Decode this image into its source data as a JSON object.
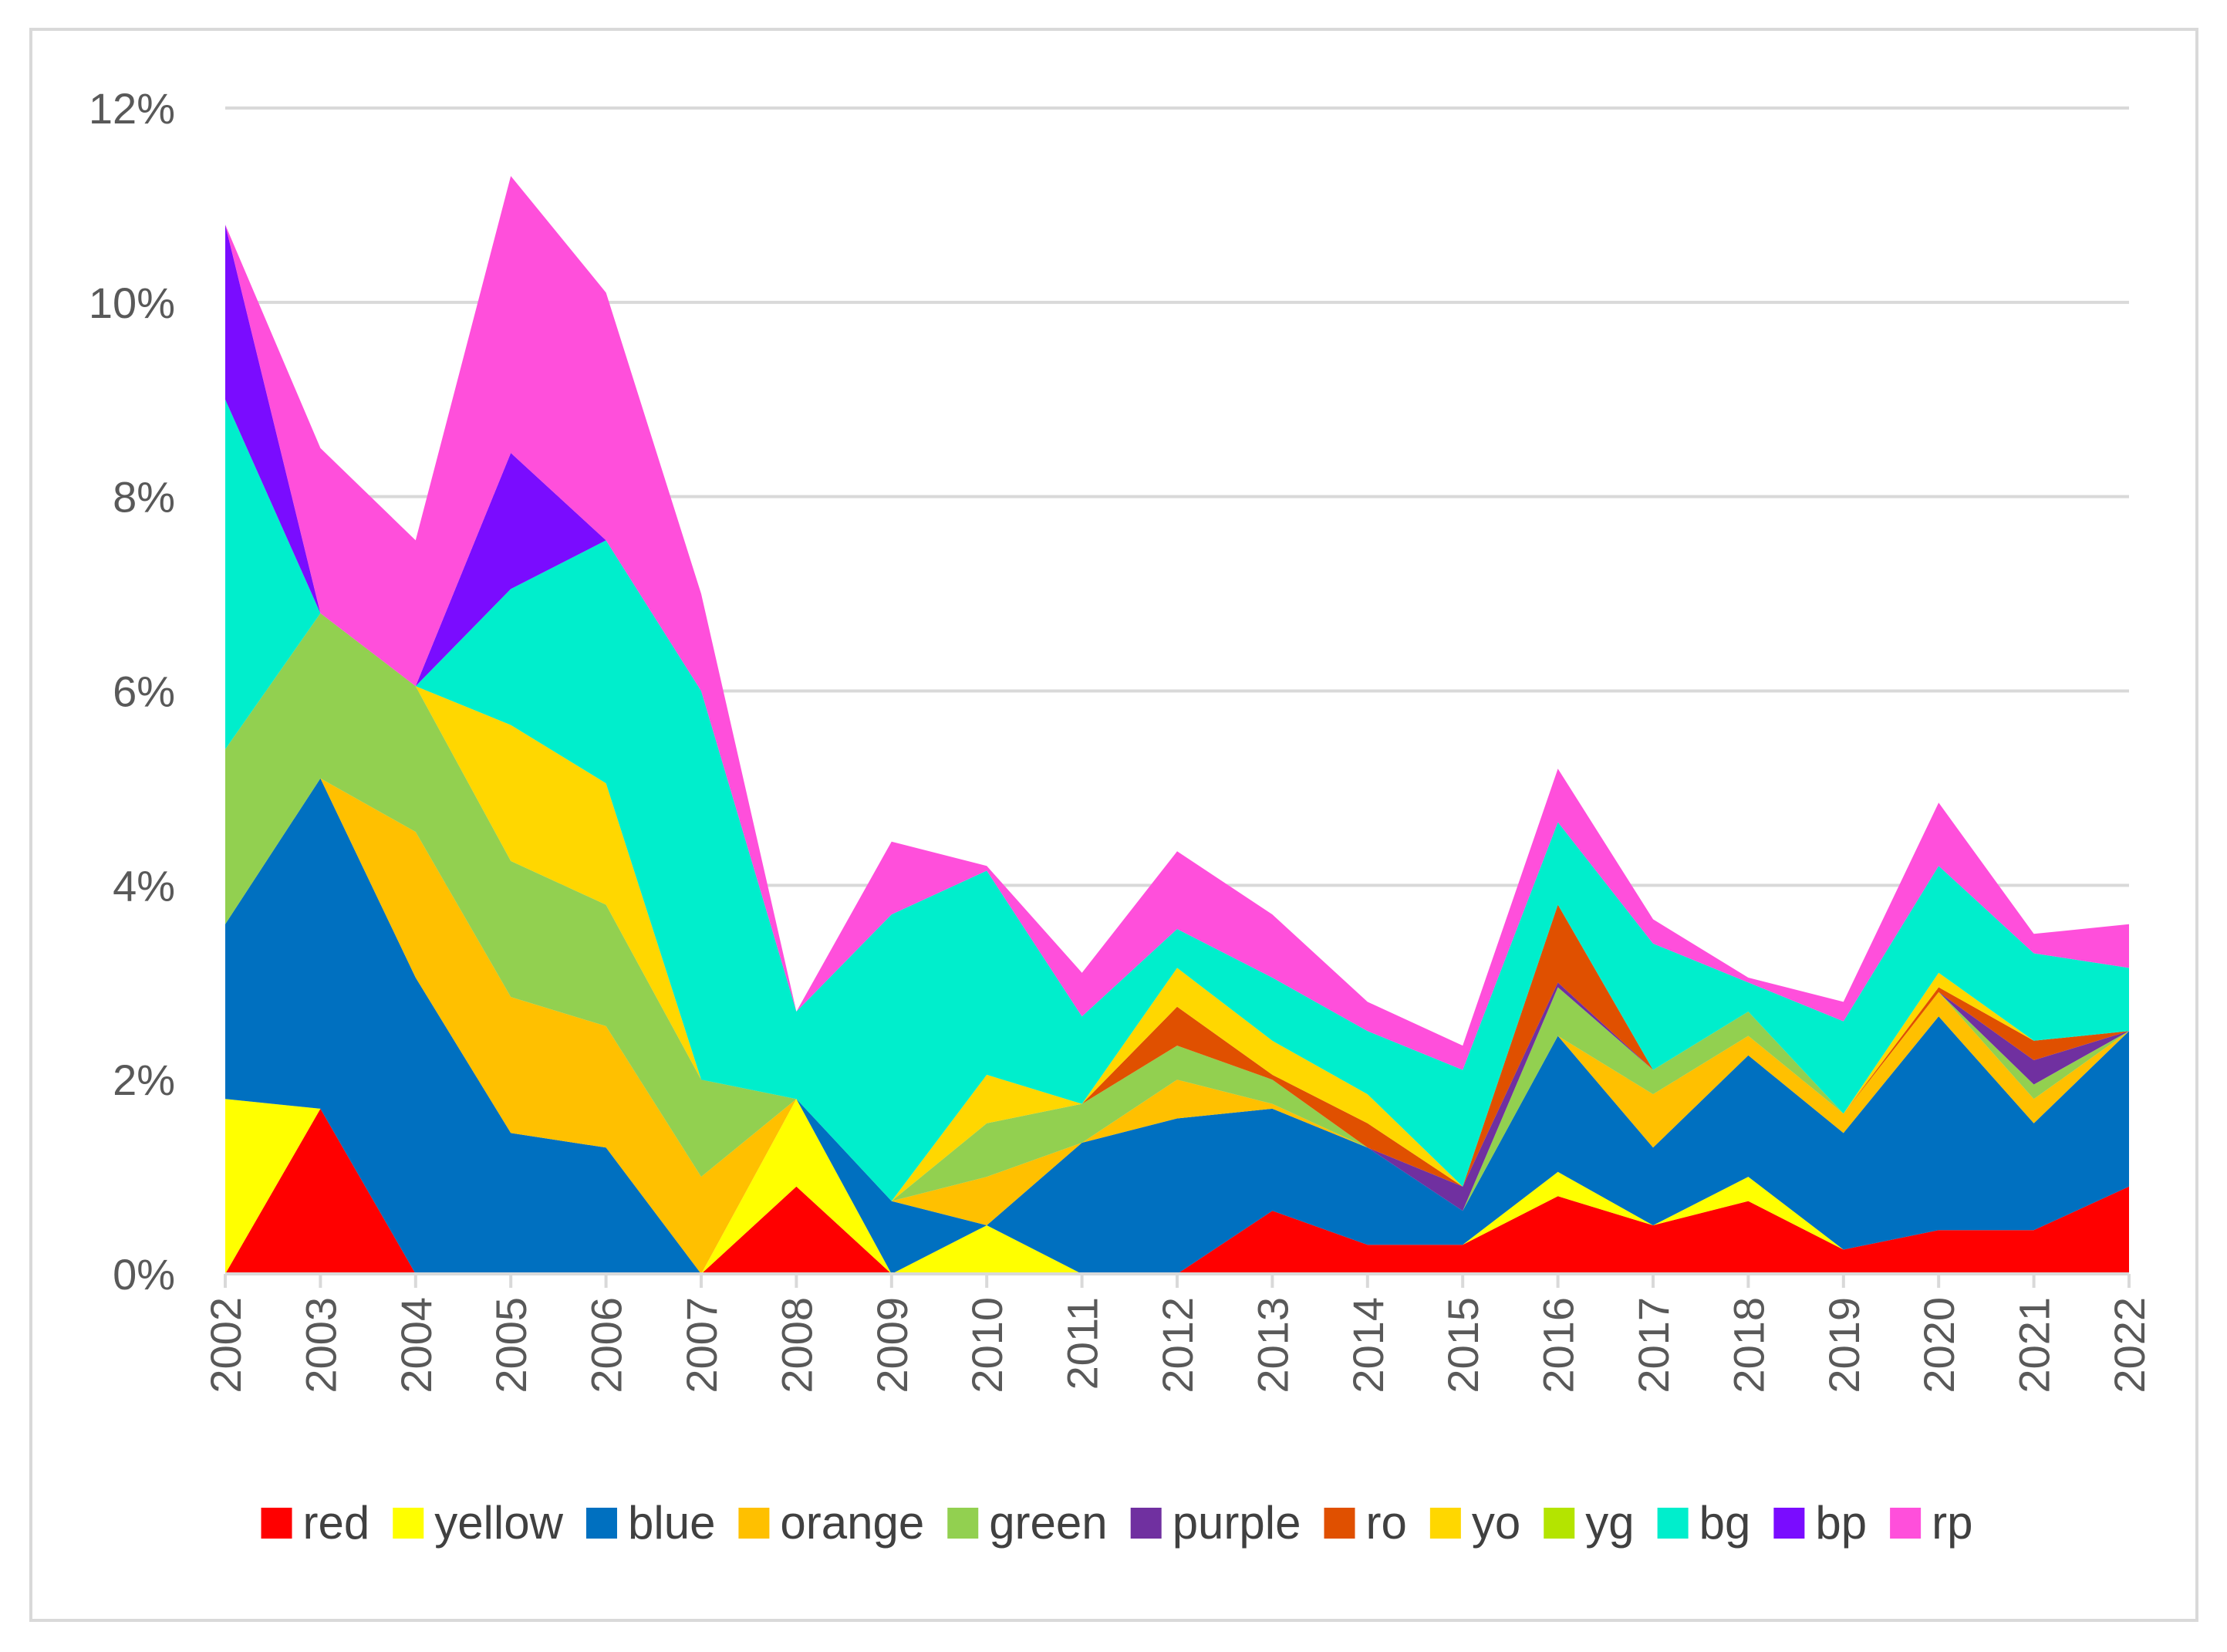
{
  "chart_data": {
    "type": "area",
    "stacked": true,
    "title": "",
    "xlabel": "",
    "ylabel": "",
    "ylim": [
      0,
      12
    ],
    "y_ticks": [
      0,
      2,
      4,
      6,
      8,
      10,
      12
    ],
    "y_tick_labels": [
      "0%",
      "2%",
      "4%",
      "6%",
      "8%",
      "10%",
      "12%"
    ],
    "grid": true,
    "legend_position": "bottom",
    "categories": [
      "2002",
      "2003",
      "2004",
      "2005",
      "2006",
      "2007",
      "2008",
      "2009",
      "2010",
      "2011",
      "2012",
      "2013",
      "2014",
      "2015",
      "2016",
      "2017",
      "2018",
      "2019",
      "2020",
      "2021",
      "2022"
    ],
    "series": [
      {
        "name": "red",
        "color": "#ff0000",
        "values": [
          0,
          1.7,
          0,
          0,
          0,
          0,
          0.9,
          0,
          0,
          0,
          0,
          0.65,
          0.3,
          0.3,
          0.8,
          0.5,
          0.75,
          0.25,
          0.45,
          0.45,
          0.9
        ]
      },
      {
        "name": "yellow",
        "color": "#ffff00",
        "values": [
          1.8,
          0,
          0,
          0,
          0,
          0,
          0.9,
          0,
          0.5,
          0,
          0,
          0,
          0,
          0,
          0.25,
          0,
          0.25,
          0,
          0,
          0,
          0
        ]
      },
      {
        "name": "blue",
        "color": "#0070c0",
        "values": [
          1.8,
          3.4,
          3.05,
          1.45,
          1.3,
          0,
          0,
          0.75,
          0,
          1.35,
          1.6,
          1.05,
          1.0,
          0.35,
          1.4,
          0.8,
          1.25,
          1.2,
          2.2,
          1.1,
          1.6
        ]
      },
      {
        "name": "orange",
        "color": "#ffc000",
        "values": [
          0,
          0,
          1.5,
          1.4,
          1.25,
          1.0,
          0,
          0,
          0.5,
          0,
          0.4,
          0.05,
          0,
          0,
          0,
          0.55,
          0.2,
          0.2,
          0.25,
          0.25,
          0
        ]
      },
      {
        "name": "green",
        "color": "#92d050",
        "values": [
          1.8,
          1.7,
          1.5,
          1.4,
          1.25,
          1.0,
          0,
          0,
          0.55,
          0.4,
          0.35,
          0.25,
          0,
          0,
          0.5,
          0.25,
          0.25,
          0,
          0,
          0.15,
          0
        ]
      },
      {
        "name": "purple",
        "color": "#7030a0",
        "values": [
          0,
          0,
          0,
          0,
          0,
          0,
          0,
          0,
          0,
          0,
          0,
          0,
          0,
          0.25,
          0.05,
          0,
          0,
          0,
          0,
          0.25,
          0
        ]
      },
      {
        "name": "ro",
        "color": "#e05000",
        "values": [
          0,
          0,
          0,
          0,
          0,
          0,
          0,
          0,
          0,
          0,
          0.4,
          0.05,
          0.25,
          0,
          0.8,
          0,
          0,
          0,
          0.05,
          0.2,
          0
        ]
      },
      {
        "name": "yo",
        "color": "#ffd700",
        "values": [
          0,
          0,
          0,
          1.4,
          1.25,
          0,
          0,
          0,
          0.5,
          0,
          0.4,
          0.35,
          0.3,
          0,
          0,
          0,
          0,
          0,
          0.15,
          0,
          0
        ]
      },
      {
        "name": "yg",
        "color": "#b4e400",
        "values": [
          0,
          0,
          0,
          0,
          0,
          0,
          0,
          0,
          0,
          0,
          0,
          0,
          0,
          0,
          0,
          0,
          0,
          0,
          0,
          0,
          0
        ]
      },
      {
        "name": "bg",
        "color": "#00eecc",
        "values": [
          3.6,
          0,
          0,
          1.4,
          2.5,
          4.0,
          0.9,
          2.95,
          2.1,
          0.9,
          0.4,
          0.65,
          0.65,
          1.2,
          0.85,
          1.3,
          0.3,
          0.95,
          1.1,
          0.9,
          0.65
        ]
      },
      {
        "name": "bp",
        "color": "#7a0cff",
        "values": [
          1.8,
          0,
          0,
          1.4,
          0,
          0,
          0,
          0,
          0,
          0,
          0,
          0,
          0,
          0,
          0,
          0,
          0,
          0,
          0,
          0,
          0
        ]
      },
      {
        "name": "rp",
        "color": "#ff4fdb",
        "values": [
          0,
          1.7,
          1.5,
          2.85,
          2.55,
          1.0,
          0,
          0.75,
          0.05,
          0.45,
          0.8,
          0.65,
          0.3,
          0.25,
          0.55,
          0.25,
          0.05,
          0.2,
          0.65,
          0.2,
          0.45
        ]
      }
    ]
  }
}
